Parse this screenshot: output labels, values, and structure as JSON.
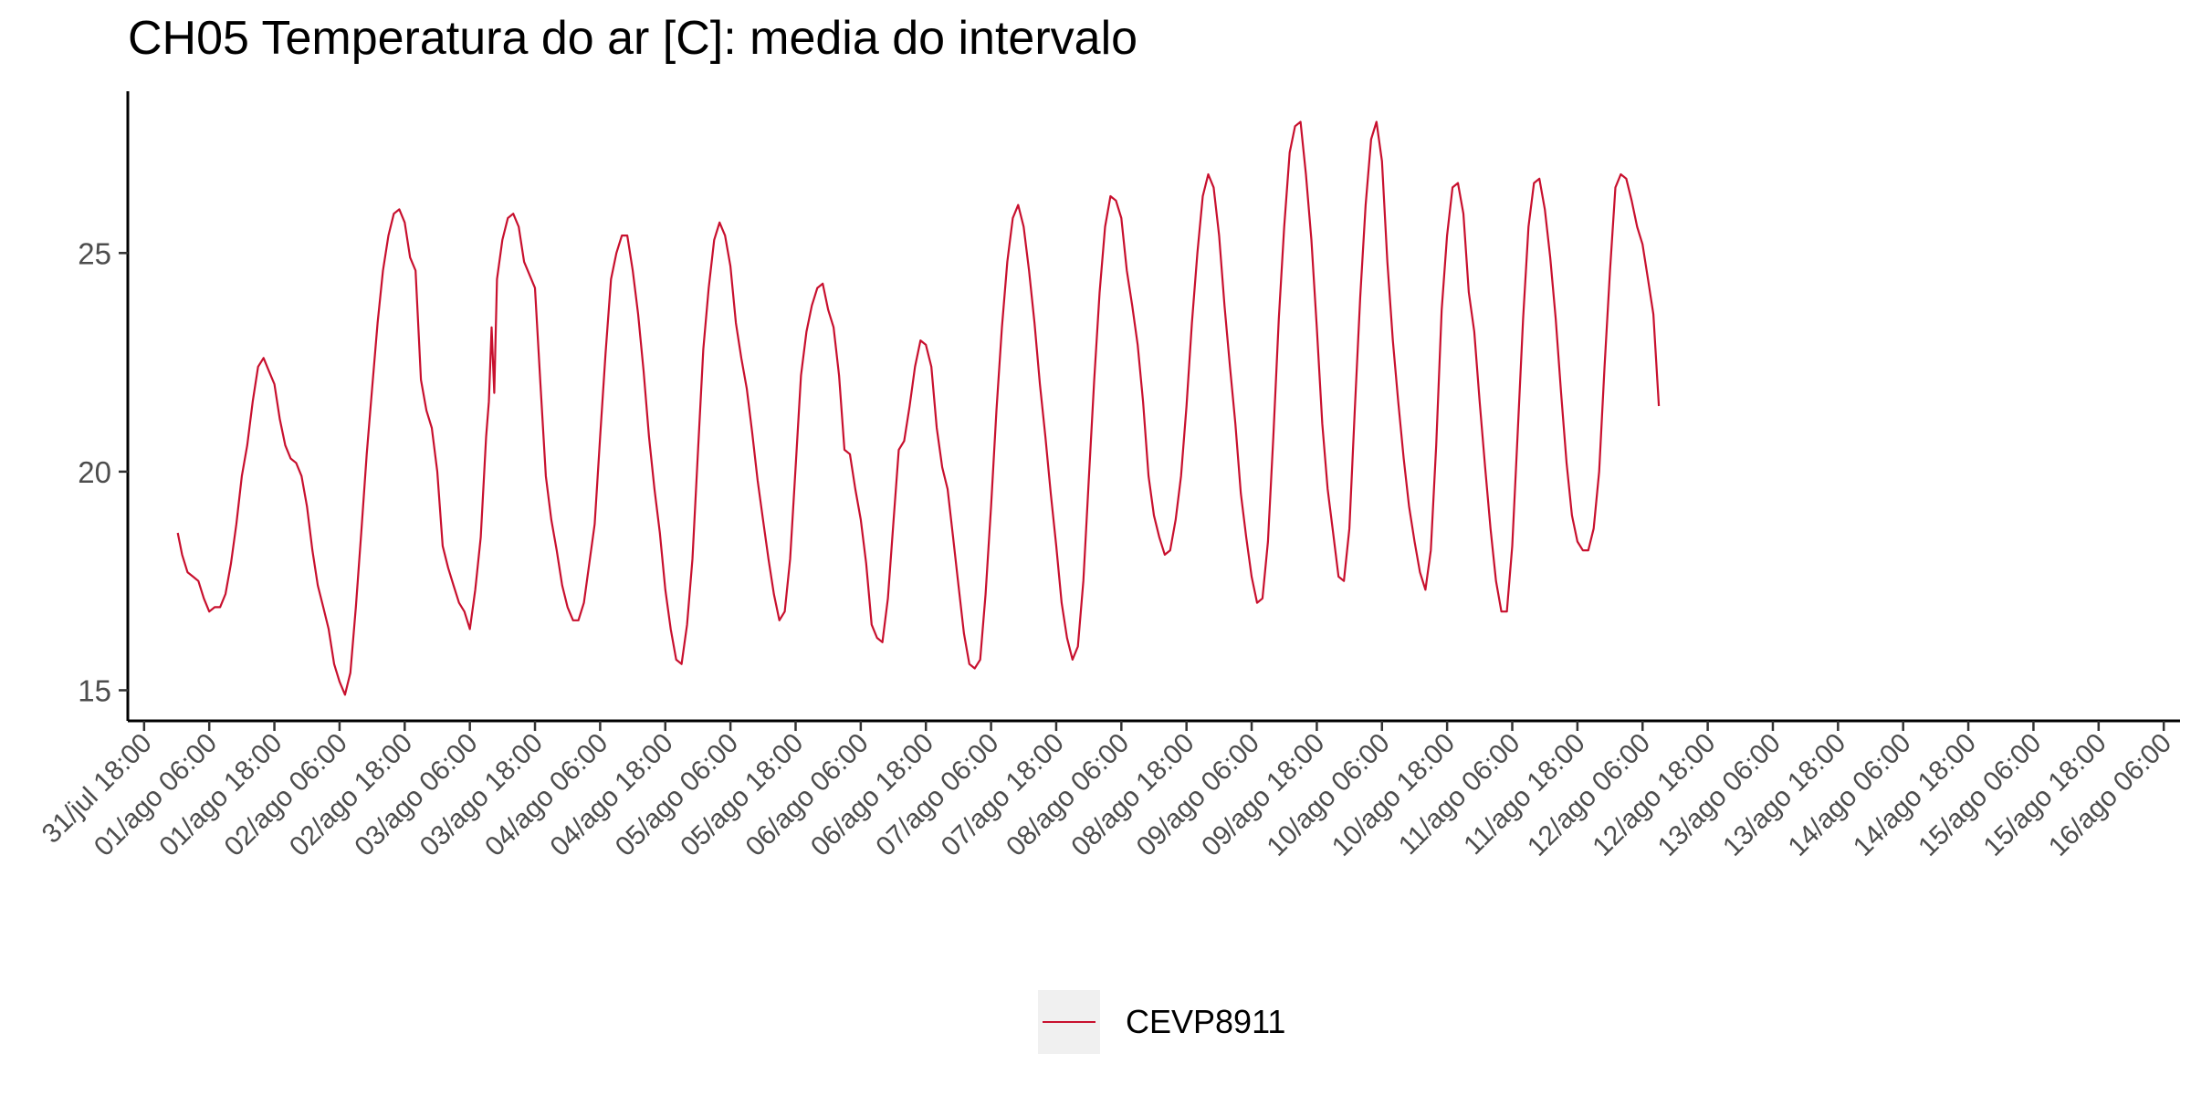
{
  "chart_data": {
    "type": "line",
    "title": "CH05 Temperatura do ar [C]: media do intervalo",
    "xlabel": "",
    "ylabel": "",
    "x_unit": "hours",
    "x_range": [
      -3,
      375
    ],
    "ylim": [
      14.3,
      28.7
    ],
    "y_ticks": [
      15,
      20,
      25
    ],
    "x_ticks": [
      {
        "x": 0,
        "label": "31/jul 18:00"
      },
      {
        "x": 12,
        "label": "01/ago 06:00"
      },
      {
        "x": 24,
        "label": "01/ago 18:00"
      },
      {
        "x": 36,
        "label": "02/ago 06:00"
      },
      {
        "x": 48,
        "label": "02/ago 18:00"
      },
      {
        "x": 60,
        "label": "03/ago 06:00"
      },
      {
        "x": 72,
        "label": "03/ago 18:00"
      },
      {
        "x": 84,
        "label": "04/ago 06:00"
      },
      {
        "x": 96,
        "label": "04/ago 18:00"
      },
      {
        "x": 108,
        "label": "05/ago 06:00"
      },
      {
        "x": 120,
        "label": "05/ago 18:00"
      },
      {
        "x": 132,
        "label": "06/ago 06:00"
      },
      {
        "x": 144,
        "label": "06/ago 18:00"
      },
      {
        "x": 156,
        "label": "07/ago 06:00"
      },
      {
        "x": 168,
        "label": "07/ago 18:00"
      },
      {
        "x": 180,
        "label": "08/ago 06:00"
      },
      {
        "x": 192,
        "label": "08/ago 18:00"
      },
      {
        "x": 204,
        "label": "09/ago 06:00"
      },
      {
        "x": 216,
        "label": "09/ago 18:00"
      },
      {
        "x": 228,
        "label": "10/ago 06:00"
      },
      {
        "x": 240,
        "label": "10/ago 18:00"
      },
      {
        "x": 252,
        "label": "11/ago 06:00"
      },
      {
        "x": 264,
        "label": "11/ago 18:00"
      },
      {
        "x": 276,
        "label": "12/ago 06:00"
      },
      {
        "x": 288,
        "label": "12/ago 18:00"
      },
      {
        "x": 300,
        "label": "13/ago 06:00"
      },
      {
        "x": 312,
        "label": "13/ago 18:00"
      },
      {
        "x": 324,
        "label": "14/ago 06:00"
      },
      {
        "x": 336,
        "label": "14/ago 18:00"
      },
      {
        "x": 348,
        "label": "15/ago 06:00"
      },
      {
        "x": 360,
        "label": "15/ago 18:00"
      },
      {
        "x": 372,
        "label": "16/ago 06:00"
      }
    ],
    "grid": false,
    "legend_position": "bottom",
    "series": [
      {
        "name": "CEVP8911",
        "color": "#c8102e",
        "points": [
          [
            6.2,
            18.6
          ],
          [
            7,
            18.1
          ],
          [
            8,
            17.7
          ],
          [
            9,
            17.6
          ],
          [
            10,
            17.5
          ],
          [
            11,
            17.1
          ],
          [
            12,
            16.8
          ],
          [
            13,
            16.9
          ],
          [
            14,
            16.9
          ],
          [
            15,
            17.2
          ],
          [
            16,
            17.9
          ],
          [
            17,
            18.8
          ],
          [
            18,
            19.9
          ],
          [
            19,
            20.6
          ],
          [
            20,
            21.6
          ],
          [
            21,
            22.4
          ],
          [
            22,
            22.6
          ],
          [
            23,
            22.3
          ],
          [
            24,
            22.0
          ],
          [
            25,
            21.2
          ],
          [
            26,
            20.6
          ],
          [
            27,
            20.3
          ],
          [
            28,
            20.2
          ],
          [
            29,
            19.9
          ],
          [
            30,
            19.2
          ],
          [
            31,
            18.2
          ],
          [
            32,
            17.4
          ],
          [
            33,
            16.9
          ],
          [
            34,
            16.4
          ],
          [
            35,
            15.6
          ],
          [
            36,
            15.2
          ],
          [
            37,
            14.9
          ],
          [
            38,
            15.4
          ],
          [
            39,
            16.9
          ],
          [
            40,
            18.6
          ],
          [
            41,
            20.4
          ],
          [
            42,
            21.9
          ],
          [
            43,
            23.4
          ],
          [
            44,
            24.6
          ],
          [
            45,
            25.4
          ],
          [
            46,
            25.9
          ],
          [
            47,
            26.0
          ],
          [
            48,
            25.7
          ],
          [
            49,
            24.9
          ],
          [
            50,
            24.6
          ],
          [
            51,
            22.1
          ],
          [
            52,
            21.4
          ],
          [
            53,
            21.0
          ],
          [
            54,
            20.0
          ],
          [
            55,
            18.3
          ],
          [
            56,
            17.8
          ],
          [
            57,
            17.4
          ],
          [
            58,
            17.0
          ],
          [
            59,
            16.8
          ],
          [
            60,
            16.4
          ],
          [
            61,
            17.3
          ],
          [
            62,
            18.5
          ],
          [
            63,
            20.8
          ],
          [
            63.5,
            21.6
          ],
          [
            64,
            23.3
          ],
          [
            64.5,
            21.8
          ],
          [
            65,
            24.4
          ],
          [
            66,
            25.3
          ],
          [
            67,
            25.8
          ],
          [
            68,
            25.9
          ],
          [
            69,
            25.6
          ],
          [
            70,
            24.8
          ],
          [
            71,
            24.5
          ],
          [
            72,
            24.2
          ],
          [
            73,
            22.0
          ],
          [
            74,
            19.9
          ],
          [
            75,
            18.9
          ],
          [
            76,
            18.2
          ],
          [
            77,
            17.4
          ],
          [
            78,
            16.9
          ],
          [
            79,
            16.6
          ],
          [
            80,
            16.6
          ],
          [
            81,
            17.0
          ],
          [
            82,
            17.9
          ],
          [
            83,
            18.8
          ],
          [
            84,
            20.8
          ],
          [
            85,
            22.7
          ],
          [
            86,
            24.4
          ],
          [
            87,
            25.0
          ],
          [
            88,
            25.4
          ],
          [
            89,
            25.4
          ],
          [
            90,
            24.6
          ],
          [
            91,
            23.6
          ],
          [
            92,
            22.3
          ],
          [
            93,
            20.8
          ],
          [
            94,
            19.6
          ],
          [
            95,
            18.6
          ],
          [
            96,
            17.3
          ],
          [
            97,
            16.4
          ],
          [
            98,
            15.7
          ],
          [
            99,
            15.6
          ],
          [
            100,
            16.5
          ],
          [
            101,
            18.0
          ],
          [
            102,
            20.4
          ],
          [
            103,
            22.8
          ],
          [
            104,
            24.2
          ],
          [
            105,
            25.3
          ],
          [
            106,
            25.7
          ],
          [
            107,
            25.4
          ],
          [
            108,
            24.7
          ],
          [
            109,
            23.4
          ],
          [
            110,
            22.6
          ],
          [
            111,
            21.9
          ],
          [
            112,
            20.9
          ],
          [
            113,
            19.8
          ],
          [
            114,
            18.9
          ],
          [
            115,
            18.0
          ],
          [
            116,
            17.2
          ],
          [
            117,
            16.6
          ],
          [
            118,
            16.8
          ],
          [
            119,
            18.0
          ],
          [
            120,
            20.1
          ],
          [
            121,
            22.2
          ],
          [
            122,
            23.2
          ],
          [
            123,
            23.8
          ],
          [
            124,
            24.2
          ],
          [
            125,
            24.3
          ],
          [
            126,
            23.7
          ],
          [
            127,
            23.3
          ],
          [
            128,
            22.2
          ],
          [
            129,
            20.5
          ],
          [
            130,
            20.4
          ],
          [
            131,
            19.6
          ],
          [
            132,
            18.9
          ],
          [
            133,
            17.9
          ],
          [
            134,
            16.5
          ],
          [
            135,
            16.2
          ],
          [
            136,
            16.1
          ],
          [
            137,
            17.1
          ],
          [
            138,
            18.8
          ],
          [
            139,
            20.5
          ],
          [
            140,
            20.7
          ],
          [
            141,
            21.5
          ],
          [
            142,
            22.4
          ],
          [
            143,
            23.0
          ],
          [
            144,
            22.9
          ],
          [
            145,
            22.4
          ],
          [
            146,
            21.0
          ],
          [
            147,
            20.1
          ],
          [
            148,
            19.6
          ],
          [
            149,
            18.5
          ],
          [
            150,
            17.4
          ],
          [
            151,
            16.3
          ],
          [
            152,
            15.6
          ],
          [
            153,
            15.5
          ],
          [
            154,
            15.7
          ],
          [
            155,
            17.2
          ],
          [
            156,
            19.2
          ],
          [
            157,
            21.4
          ],
          [
            158,
            23.3
          ],
          [
            159,
            24.8
          ],
          [
            160,
            25.8
          ],
          [
            161,
            26.1
          ],
          [
            162,
            25.6
          ],
          [
            163,
            24.6
          ],
          [
            164,
            23.4
          ],
          [
            165,
            22.0
          ],
          [
            166,
            20.8
          ],
          [
            167,
            19.5
          ],
          [
            168,
            18.3
          ],
          [
            169,
            17.0
          ],
          [
            170,
            16.2
          ],
          [
            171,
            15.7
          ],
          [
            172,
            16.0
          ],
          [
            173,
            17.5
          ],
          [
            174,
            19.8
          ],
          [
            175,
            22.1
          ],
          [
            176,
            24.1
          ],
          [
            177,
            25.6
          ],
          [
            178,
            26.3
          ],
          [
            179,
            26.2
          ],
          [
            180,
            25.8
          ],
          [
            181,
            24.6
          ],
          [
            182,
            23.8
          ],
          [
            183,
            22.9
          ],
          [
            184,
            21.6
          ],
          [
            185,
            19.9
          ],
          [
            186,
            19.0
          ],
          [
            187,
            18.5
          ],
          [
            188,
            18.1
          ],
          [
            189,
            18.2
          ],
          [
            190,
            18.9
          ],
          [
            191,
            19.9
          ],
          [
            192,
            21.5
          ],
          [
            193,
            23.4
          ],
          [
            194,
            25.0
          ],
          [
            195,
            26.3
          ],
          [
            196,
            26.8
          ],
          [
            197,
            26.5
          ],
          [
            198,
            25.4
          ],
          [
            199,
            23.8
          ],
          [
            200,
            22.4
          ],
          [
            201,
            21.1
          ],
          [
            202,
            19.5
          ],
          [
            203,
            18.5
          ],
          [
            204,
            17.6
          ],
          [
            205,
            17.0
          ],
          [
            206,
            17.1
          ],
          [
            207,
            18.4
          ],
          [
            208,
            20.8
          ],
          [
            209,
            23.5
          ],
          [
            210,
            25.6
          ],
          [
            211,
            27.3
          ],
          [
            212,
            27.9
          ],
          [
            213,
            28.0
          ],
          [
            214,
            26.8
          ],
          [
            215,
            25.3
          ],
          [
            216,
            23.3
          ],
          [
            217,
            21.1
          ],
          [
            218,
            19.6
          ],
          [
            219,
            18.6
          ],
          [
            220,
            17.6
          ],
          [
            221,
            17.5
          ],
          [
            222,
            18.7
          ],
          [
            223,
            21.4
          ],
          [
            224,
            24.0
          ],
          [
            225,
            26.1
          ],
          [
            226,
            27.6
          ],
          [
            227,
            28.0
          ],
          [
            228,
            27.1
          ],
          [
            229,
            24.8
          ],
          [
            230,
            23.0
          ],
          [
            231,
            21.6
          ],
          [
            232,
            20.3
          ],
          [
            233,
            19.2
          ],
          [
            234,
            18.4
          ],
          [
            235,
            17.7
          ],
          [
            236,
            17.3
          ],
          [
            237,
            18.2
          ],
          [
            238,
            20.6
          ],
          [
            239,
            23.7
          ],
          [
            240,
            25.4
          ],
          [
            241,
            26.5
          ],
          [
            242,
            26.6
          ],
          [
            243,
            25.9
          ],
          [
            244,
            24.1
          ],
          [
            245,
            23.2
          ],
          [
            246,
            21.6
          ],
          [
            247,
            20.1
          ],
          [
            248,
            18.7
          ],
          [
            249,
            17.5
          ],
          [
            250,
            16.8
          ],
          [
            251,
            16.8
          ],
          [
            252,
            18.3
          ],
          [
            253,
            20.9
          ],
          [
            254,
            23.5
          ],
          [
            255,
            25.6
          ],
          [
            256,
            26.6
          ],
          [
            257,
            26.7
          ],
          [
            258,
            26.0
          ],
          [
            259,
            24.9
          ],
          [
            260,
            23.5
          ],
          [
            261,
            21.8
          ],
          [
            262,
            20.2
          ],
          [
            263,
            19.0
          ],
          [
            264,
            18.4
          ],
          [
            265,
            18.2
          ],
          [
            266,
            18.2
          ],
          [
            267,
            18.7
          ],
          [
            268,
            20.0
          ],
          [
            269,
            22.4
          ],
          [
            270,
            24.6
          ],
          [
            271,
            26.5
          ],
          [
            272,
            26.8
          ],
          [
            273,
            26.7
          ],
          [
            274,
            26.2
          ],
          [
            275,
            25.6
          ],
          [
            276,
            25.2
          ],
          [
            277,
            24.4
          ],
          [
            278,
            23.6
          ],
          [
            279,
            21.5
          ]
        ]
      }
    ]
  }
}
